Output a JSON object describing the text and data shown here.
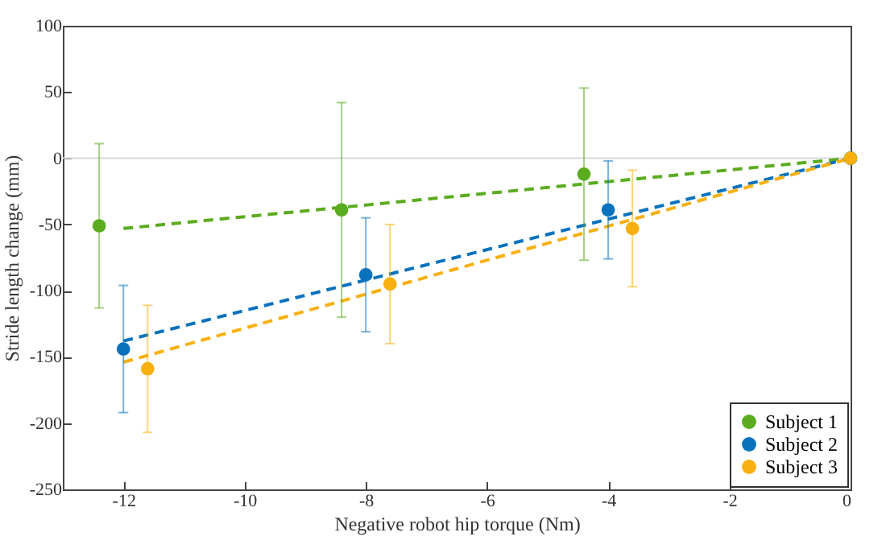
{
  "chart_data": {
    "type": "scatter",
    "xlabel": "Negative robot hip torque (Nm)",
    "ylabel": "Stride length change (mm)",
    "xlim": [
      -13,
      0
    ],
    "xticks": [
      -12,
      -10,
      -8,
      -6,
      -4,
      -2,
      0
    ],
    "ylim": [
      -250,
      100
    ],
    "yticks": [
      -250,
      -200,
      -150,
      -100,
      -50,
      0,
      50,
      100
    ],
    "grid": false,
    "legend": "bottom right",
    "ref_lines": [
      {
        "axis": "y",
        "value": 0,
        "color": "#d9d9d9"
      }
    ],
    "series": [
      {
        "name": "Subject 1",
        "marker": "circle",
        "color": "#5aac1e",
        "x": [
          -12.4,
          -8.4,
          -4.4,
          0
        ],
        "values": [
          -51,
          -39,
          -12,
          0
        ],
        "errors": [
          62,
          81,
          65,
          null
        ]
      },
      {
        "name": "Subject 2",
        "marker": "circle",
        "color": "#0a72bd",
        "x": [
          -12,
          -8,
          -4,
          0
        ],
        "values": [
          -144,
          -88,
          -39,
          0
        ],
        "errors": [
          48,
          43,
          37,
          null
        ]
      },
      {
        "name": "Subject 3",
        "marker": "circle",
        "color": "#f7b00f",
        "x": [
          -11.6,
          -7.6,
          -3.6,
          0
        ],
        "values": [
          -159,
          -95,
          -53,
          0
        ],
        "errors": [
          48,
          45,
          44,
          null
        ]
      },
      {
        "type": "line",
        "color": "#5aac1e",
        "line_style": "dashed",
        "x": [
          -12,
          0
        ],
        "values": [
          -53,
          0
        ]
      },
      {
        "type": "line",
        "color": "#0a72bd",
        "line_style": "dashed",
        "x": [
          -12,
          0
        ],
        "values": [
          -138,
          0
        ]
      },
      {
        "type": "line",
        "color": "#f7b00f",
        "line_style": "dashed",
        "x": [
          -12,
          0
        ],
        "values": [
          -154,
          0
        ]
      }
    ]
  }
}
